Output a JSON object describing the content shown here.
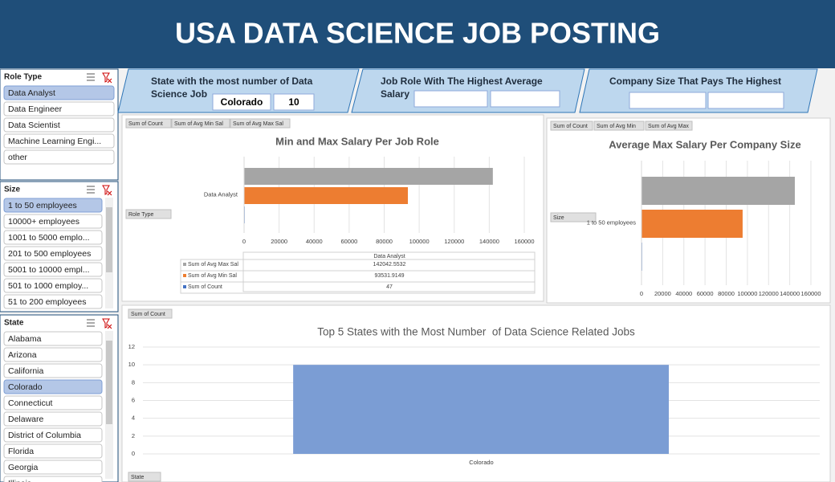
{
  "header": {
    "title": "USA DATA SCIENCE JOB POSTING"
  },
  "slicers": [
    {
      "title": "Role Type",
      "items": [
        {
          "label": "Data Analyst",
          "selected": true
        },
        {
          "label": "Data Engineer"
        },
        {
          "label": "Data Scientist"
        },
        {
          "label": "Machine Learning Engi..."
        },
        {
          "label": "other"
        }
      ]
    },
    {
      "title": "Size",
      "items": [
        {
          "label": "1 to 50 employees",
          "selected": true
        },
        {
          "label": "10000+ employees"
        },
        {
          "label": "1001 to 5000 emplo..."
        },
        {
          "label": "201 to 500 employees"
        },
        {
          "label": "5001 to 10000 empl..."
        },
        {
          "label": "501 to 1000 employ..."
        },
        {
          "label": "51 to 200 employees"
        }
      ]
    },
    {
      "title": "State",
      "items": [
        {
          "label": "Alabama"
        },
        {
          "label": "Arizona"
        },
        {
          "label": "California"
        },
        {
          "label": "Colorado",
          "selected": true
        },
        {
          "label": "Connecticut"
        },
        {
          "label": "Delaware"
        },
        {
          "label": "District of Columbia"
        },
        {
          "label": "Florida"
        },
        {
          "label": "Georgia"
        },
        {
          "label": "Illinois"
        }
      ]
    }
  ],
  "kpis": [
    {
      "title": "State with the most number of Data Science Job",
      "values": [
        "Colorado",
        10
      ]
    },
    {
      "title": "Job Role With The Highest Average Salary",
      "values": []
    },
    {
      "title": "Company Size That Pays The Highest",
      "values": []
    }
  ],
  "chart_data": [
    {
      "type": "bar",
      "orientation": "horizontal",
      "title": "Min and Max Salary Per Job Role",
      "field_buttons": [
        "Sum of Count",
        "Sum of Avg Min Sal",
        "Sum of Avg Max Sal"
      ],
      "axis_button": "Role Type",
      "categories": [
        "Data Analyst"
      ],
      "series": [
        {
          "name": "Sum of Avg Max Sal",
          "color": "#a5a5a5",
          "values": [
            142042.5532
          ]
        },
        {
          "name": "Sum of Avg Min Sal",
          "color": "#ed7d31",
          "values": [
            93531.9149
          ]
        },
        {
          "name": "Sum of Count",
          "color": "#4472c4",
          "values": [
            47
          ]
        }
      ],
      "xlim": [
        0,
        160000
      ],
      "xticks": [
        0,
        20000,
        40000,
        60000,
        80000,
        100000,
        120000,
        140000,
        160000
      ],
      "grid": true,
      "data_table": true
    },
    {
      "type": "bar",
      "orientation": "horizontal",
      "title": "Average Max Salary Per Company Size",
      "field_buttons": [
        "Sum of Count",
        "Sum of Avg Min",
        "Sum of Avg Max"
      ],
      "axis_button": "Size",
      "categories": [
        "1 to 50 employees"
      ],
      "series": [
        {
          "name": "Sum of Avg Max",
          "color": "#a5a5a5",
          "values": [
            144800
          ]
        },
        {
          "name": "Sum of Avg Min",
          "color": "#ed7d31",
          "values": [
            95500
          ]
        },
        {
          "name": "Sum of Count",
          "color": "#4472c4",
          "values": [
            40
          ]
        }
      ],
      "xlim": [
        0,
        160000
      ],
      "xticks": [
        0,
        20000,
        40000,
        60000,
        80000,
        100000,
        120000,
        140000,
        160000
      ],
      "grid": true
    },
    {
      "type": "bar",
      "orientation": "vertical",
      "title": "Top 5 States with the Most Number  of Data Science Related Jobs",
      "field_buttons": [
        "Sum of Count"
      ],
      "axis_button": "State",
      "categories": [
        "Colorado"
      ],
      "values": [
        10
      ],
      "color": "#7b9dd4",
      "ylim": [
        0,
        12
      ],
      "yticks": [
        0,
        2,
        4,
        6,
        8,
        10,
        12
      ],
      "grid": true
    }
  ]
}
